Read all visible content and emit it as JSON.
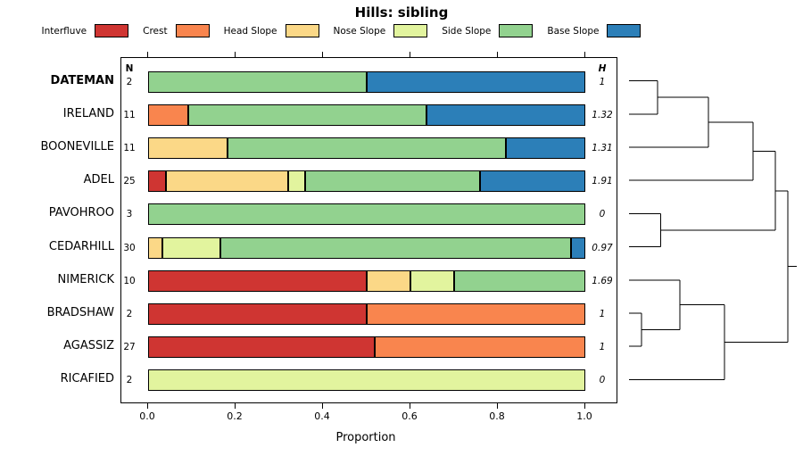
{
  "chart_data": {
    "type": "bar",
    "variant": "horizontal-stacked-with-dendrogram",
    "title": "Hills: sibling",
    "xlabel": "Proportion",
    "xlim": [
      0,
      1
    ],
    "x_tick_values": [
      0,
      0.2,
      0.4,
      0.6,
      0.8,
      1.0
    ],
    "x_tick_labels": [
      "0.0",
      "0.2",
      "0.4",
      "0.6",
      "0.8",
      "1.0"
    ],
    "n_header": "N",
    "h_header": "H",
    "categories": [
      "Interfluve",
      "Crest",
      "Head Slope",
      "Nose Slope",
      "Side Slope",
      "Base Slope"
    ],
    "colors": [
      "#CF3532",
      "#F9854E",
      "#FBD887",
      "#E2F49E",
      "#92D28F",
      "#2C7FB8"
    ],
    "rows": [
      {
        "name": "DATEMAN",
        "bold": true,
        "n": 2,
        "h": "1",
        "values": [
          0,
          0,
          0,
          0,
          0.5,
          0.5
        ]
      },
      {
        "name": "IRELAND",
        "bold": false,
        "n": 11,
        "h": "1.32",
        "values": [
          0,
          0.091,
          0,
          0,
          0.545,
          0.364
        ]
      },
      {
        "name": "BOONEVILLE",
        "bold": false,
        "n": 11,
        "h": "1.31",
        "values": [
          0,
          0,
          0.182,
          0,
          0.636,
          0.182
        ]
      },
      {
        "name": "ADEL",
        "bold": false,
        "n": 25,
        "h": "1.91",
        "values": [
          0.04,
          0,
          0.28,
          0.04,
          0.4,
          0.24
        ]
      },
      {
        "name": "PAVOHROO",
        "bold": false,
        "n": 3,
        "h": "0",
        "values": [
          0,
          0,
          0,
          0,
          1,
          0
        ]
      },
      {
        "name": "CEDARHILL",
        "bold": false,
        "n": 30,
        "h": "0.97",
        "values": [
          0,
          0,
          0.033,
          0.133,
          0.801,
          0.033
        ]
      },
      {
        "name": "NIMERICK",
        "bold": false,
        "n": 10,
        "h": "1.69",
        "values": [
          0.5,
          0,
          0.1,
          0.1,
          0.3,
          0
        ]
      },
      {
        "name": "BRADSHAW",
        "bold": false,
        "n": 2,
        "h": "1",
        "values": [
          0.5,
          0.5,
          0,
          0,
          0,
          0
        ]
      },
      {
        "name": "AGASSIZ",
        "bold": false,
        "n": 27,
        "h": "1",
        "values": [
          0.519,
          0.481,
          0,
          0,
          0,
          0
        ]
      },
      {
        "name": "RICAFIED",
        "bold": false,
        "n": 2,
        "h": "0",
        "values": [
          0,
          0,
          0,
          1,
          0,
          0
        ]
      }
    ],
    "dendrogram": {
      "leaf_order": [
        "DATEMAN",
        "IRELAND",
        "BOONEVILLE",
        "ADEL",
        "PAVOHROO",
        "CEDARHILL",
        "NIMERICK",
        "BRADSHAW",
        "AGASSIZ",
        "RICAFIED"
      ],
      "merges": [
        {
          "a": "L0",
          "b": "L1",
          "d": 0.18
        },
        {
          "a": "M0",
          "b": "L2",
          "d": 0.5
        },
        {
          "a": "M1",
          "b": "L3",
          "d": 0.78
        },
        {
          "a": "L4",
          "b": "L5",
          "d": 0.2
        },
        {
          "a": "M2",
          "b": "M3",
          "d": 0.92
        },
        {
          "a": "L7",
          "b": "L8",
          "d": 0.08
        },
        {
          "a": "L6",
          "b": "M5",
          "d": 0.32
        },
        {
          "a": "M6",
          "b": "L9",
          "d": 0.6
        },
        {
          "a": "M4",
          "b": "M7",
          "d": 1
        }
      ]
    }
  }
}
